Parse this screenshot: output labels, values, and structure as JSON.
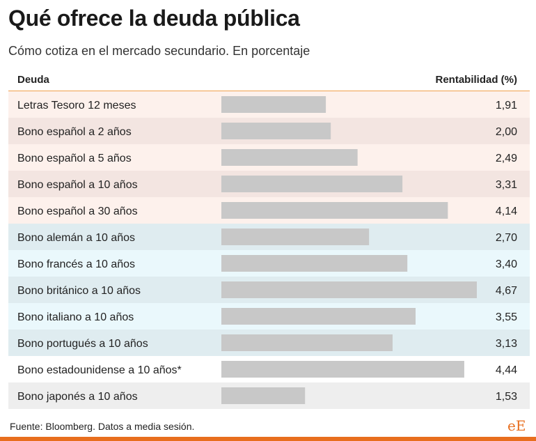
{
  "title": "Qué ofrece la deuda pública",
  "subtitle": "Cómo cotiza en el mercado secundario. En porcentaje",
  "header": {
    "left": "Deuda",
    "right": "Rentabilidad (%)"
  },
  "source": "Fuente: Bloomberg. Datos a media sesión.",
  "logo": "eE",
  "colors": {
    "accent": "#e86e1e",
    "header_line": "#f0a04b",
    "bar": "#c8c8c8"
  },
  "chart_data": {
    "type": "bar",
    "orientation": "horizontal",
    "title": "Qué ofrece la deuda pública",
    "subtitle": "Cómo cotiza en el mercado secundario. En porcentaje",
    "xlabel": "Rentabilidad (%)",
    "ylabel": "Deuda",
    "xlim": [
      0,
      4.67
    ],
    "grid": false,
    "categories": [
      "Letras Tesoro 12 meses",
      "Bono español a 2 años",
      "Bono español a 5 años",
      "Bono español a 10 años",
      "Bono español a 30 años",
      "Bono alemán a 10 años",
      "Bono francés a 10 años",
      "Bono británico a 10 años",
      "Bono italiano a 10 años",
      "Bono portugués a 10 años",
      "Bono estadounidense a 10 años*",
      "Bono japonés a 10 años"
    ],
    "values": [
      1.91,
      2.0,
      2.49,
      3.31,
      4.14,
      2.7,
      3.4,
      4.67,
      3.55,
      3.13,
      4.44,
      1.53
    ],
    "value_labels": [
      "1,91",
      "2,00",
      "2,49",
      "3,31",
      "4,14",
      "2,70",
      "3,40",
      "4,67",
      "3,55",
      "3,13",
      "4,44",
      "1,53"
    ],
    "row_colors": [
      "#fdf1ec",
      "#f3e5e1",
      "#fdf1ec",
      "#f3e5e1",
      "#fdf1ec",
      "#dfecf0",
      "#eaf8fc",
      "#dfecf0",
      "#eaf8fc",
      "#dfecf0",
      "#ffffff",
      "#eeeeee"
    ]
  }
}
